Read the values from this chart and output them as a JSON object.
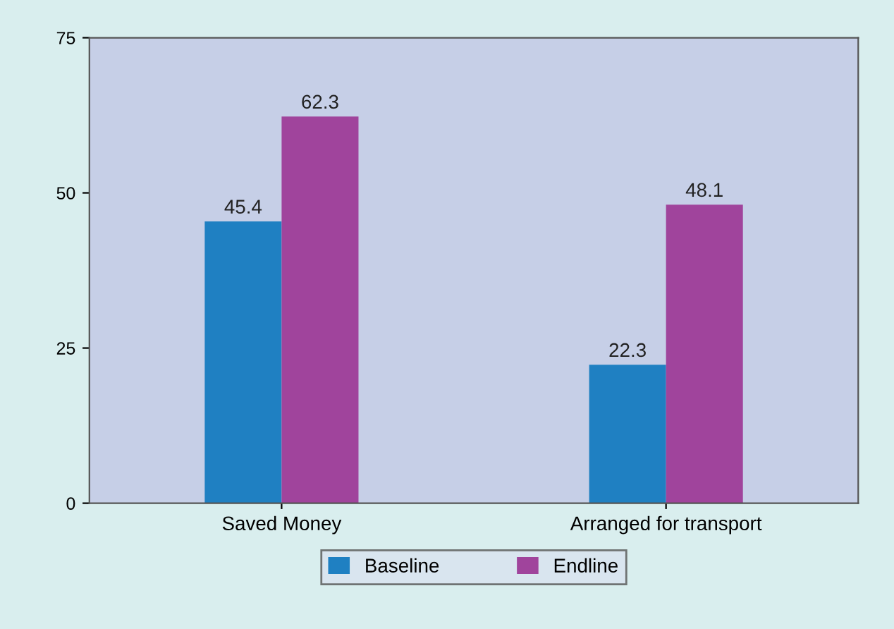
{
  "chart_data": {
    "type": "bar",
    "categories": [
      "Saved Money",
      "Arranged for transport"
    ],
    "series": [
      {
        "name": "Baseline",
        "color": "#1f80c2",
        "values": [
          45.4,
          22.3
        ]
      },
      {
        "name": "Endline",
        "color": "#a0449c",
        "values": [
          62.3,
          48.1
        ]
      }
    ],
    "ylim": [
      0,
      75
    ],
    "yticks": [
      0,
      25,
      50,
      75
    ],
    "data_labels": true,
    "grid": false,
    "legend": "bottom"
  }
}
